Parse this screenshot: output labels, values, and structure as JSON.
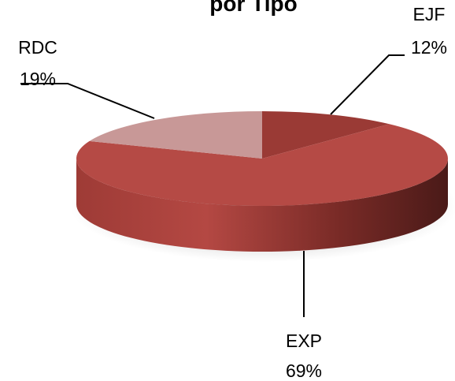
{
  "chart_data": {
    "type": "pie",
    "style": "3d",
    "title": "por Tipo",
    "slices": [
      {
        "name": "EJF",
        "value": 12,
        "label": "12%",
        "color": "#9a3a35"
      },
      {
        "name": "EXP",
        "value": 69,
        "label": "69%",
        "color": "#b54a45"
      },
      {
        "name": "RDC",
        "value": 19,
        "label": "19%",
        "color": "#c89897"
      }
    ],
    "legend": "none"
  }
}
